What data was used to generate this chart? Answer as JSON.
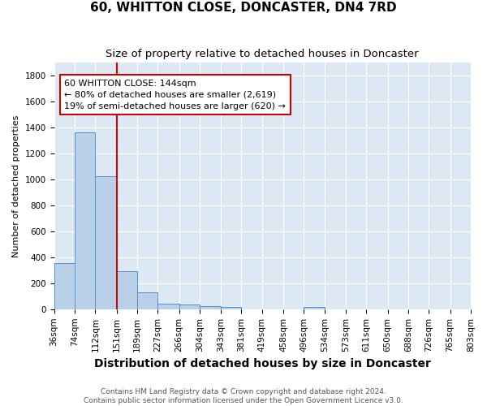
{
  "title": "60, WHITTON CLOSE, DONCASTER, DN4 7RD",
  "subtitle": "Size of property relative to detached houses in Doncaster",
  "xlabel": "Distribution of detached houses by size in Doncaster",
  "ylabel": "Number of detached properties",
  "footnote1": "Contains HM Land Registry data © Crown copyright and database right 2024.",
  "footnote2": "Contains public sector information licensed under the Open Government Licence v3.0.",
  "bin_edges": [
    36,
    74,
    112,
    151,
    189,
    227,
    266,
    304,
    343,
    381,
    419,
    458,
    496,
    534,
    573,
    611,
    650,
    688,
    726,
    765,
    803
  ],
  "bar_heights": [
    355,
    1360,
    1025,
    290,
    130,
    42,
    36,
    27,
    18,
    0,
    0,
    0,
    20,
    0,
    0,
    0,
    0,
    0,
    0,
    0
  ],
  "bar_color": "#b8d0e8",
  "bar_edge_color": "#5590c8",
  "subject_x": 151,
  "annotation_line1": "60 WHITTON CLOSE: 144sqm",
  "annotation_line2": "← 80% of detached houses are smaller (2,619)",
  "annotation_line3": "19% of semi-detached houses are larger (620) →",
  "annotation_box_facecolor": "#ffffff",
  "annotation_border_color": "#cc0000",
  "red_line_color": "#cc0000",
  "ylim": [
    0,
    1900
  ],
  "xlim": [
    36,
    803
  ],
  "background_color": "#dde8f5",
  "fig_background_color": "#ffffff",
  "grid_color": "#ffffff",
  "title_fontsize": 11,
  "subtitle_fontsize": 9.5,
  "xlabel_fontsize": 10,
  "ylabel_fontsize": 8,
  "tick_fontsize": 7.5,
  "annotation_fontsize": 8,
  "footnote_fontsize": 6.5
}
